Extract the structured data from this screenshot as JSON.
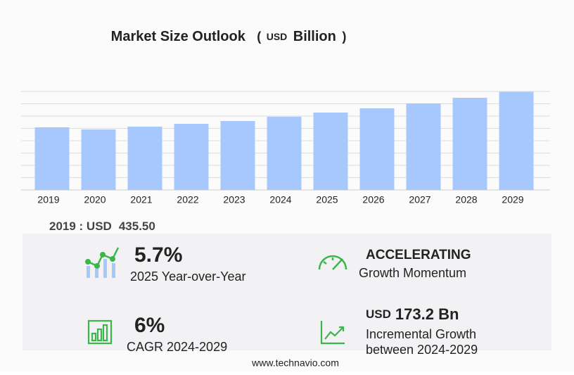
{
  "chart_data": {
    "type": "bar",
    "title": "Market Size Outlook",
    "unit_open": "(",
    "unit_prefix": "USD",
    "unit": "Billion",
    "unit_close": ")",
    "categories": [
      "2019",
      "2020",
      "2021",
      "2022",
      "2023",
      "2024",
      "2025",
      "2026",
      "2027",
      "2028",
      "2029"
    ],
    "values": [
      435.5,
      420.8,
      440.4,
      460.0,
      479.6,
      509.5,
      538.5,
      567.6,
      601.9,
      641.0,
      682.7
    ],
    "color": "#a7c8fd",
    "ylim": [
      0,
      685
    ],
    "grid": true
  },
  "base": {
    "label": "2019 : USD",
    "value": "435.50"
  },
  "highlights": [
    {
      "value": "5.7%",
      "label": "2025 Year-over-Year"
    },
    {
      "value": "ACCELERATING",
      "label": "Growth Momentum"
    },
    {
      "value": "6%",
      "label": "CAGR 2024-2029"
    },
    {
      "prefix": "USD",
      "value": "173.2 Bn",
      "lines": [
        "Incremental Growth",
        "between 2024-2029"
      ]
    }
  ],
  "footer": "www.technavio.com"
}
